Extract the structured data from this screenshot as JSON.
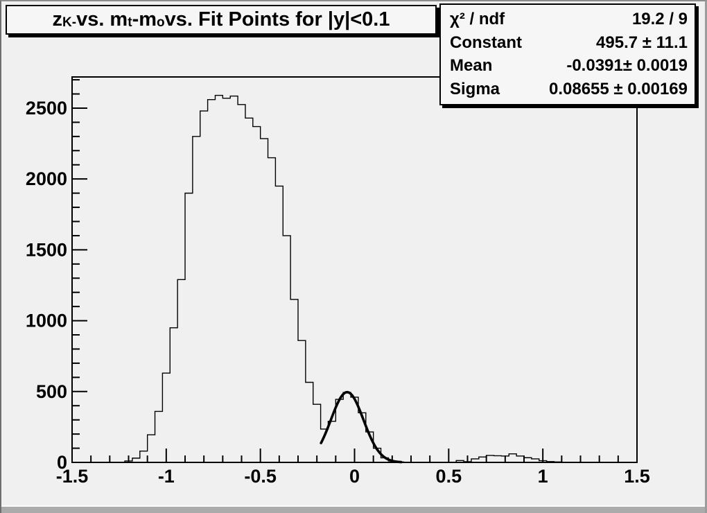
{
  "window": {
    "background": "#f0f0f0",
    "pave_background": "#f6f6f6",
    "line_color": "#000000",
    "border_gray": "#ababab"
  },
  "title": {
    "parts": [
      "z",
      "K-",
      " vs. m",
      "t",
      "-m",
      "o",
      " vs. Fit Points for |y|<0.1"
    ]
  },
  "stats_box": {
    "rows": [
      {
        "label": "χ² / ndf",
        "value": "19.2 / 9"
      },
      {
        "label": "Constant",
        "value": "495.7 ± 11.1"
      },
      {
        "label": "Mean",
        "value": "-0.0391± 0.0019"
      },
      {
        "label": "Sigma",
        "value": "0.08655 ± 0.00169"
      }
    ]
  },
  "chart_data": {
    "type": "bar",
    "subtype": "step-histogram",
    "title": "z_{K-} vs. m_{t}-m_{o} vs. Fit Points for |y|<0.1",
    "xlabel": "",
    "ylabel": "",
    "xlim": [
      -1.5,
      1.5
    ],
    "ylim": [
      0,
      2720
    ],
    "grid": false,
    "legend": false,
    "x_major_ticks": [
      -1.5,
      -1,
      -0.5,
      0,
      0.5,
      1,
      1.5
    ],
    "x_major_tick_labels": [
      "-1.5",
      "-1",
      "-0.5",
      "0",
      "0.5",
      "1",
      "1.5"
    ],
    "x_minor_tick_step": 0.1,
    "y_major_ticks": [
      0,
      500,
      1000,
      1500,
      2000,
      2500
    ],
    "y_major_tick_labels": [
      "0",
      "500",
      "1000",
      "1500",
      "2000",
      "2500"
    ],
    "y_minor_tick_step": 100,
    "bins": {
      "start": -1.5,
      "width": 0.04,
      "values": [
        0,
        0,
        0,
        0,
        0,
        0,
        0,
        10,
        30,
        80,
        195,
        360,
        630,
        950,
        1290,
        1900,
        2300,
        2480,
        2560,
        2590,
        2570,
        2585,
        2525,
        2430,
        2370,
        2285,
        2150,
        1950,
        1600,
        1150,
        860,
        565,
        410,
        235,
        290,
        445,
        494,
        460,
        350,
        215,
        100,
        32,
        10,
        3,
        0,
        0,
        0,
        0,
        0,
        0,
        0,
        13,
        5,
        25,
        38,
        49,
        47,
        45,
        60,
        45,
        33,
        25,
        12,
        6,
        3,
        0,
        0,
        0,
        0,
        0,
        0,
        0,
        0,
        0,
        0
      ]
    },
    "fit_curve": {
      "shape": "gaussian",
      "constant": 495.7,
      "constant_err": 11.1,
      "mean": -0.0391,
      "mean_err": 0.0019,
      "sigma": 0.08655,
      "sigma_err": 0.00169,
      "chi2": 19.2,
      "ndf": 9,
      "draw_range": [
        -0.178,
        0.25
      ]
    }
  }
}
